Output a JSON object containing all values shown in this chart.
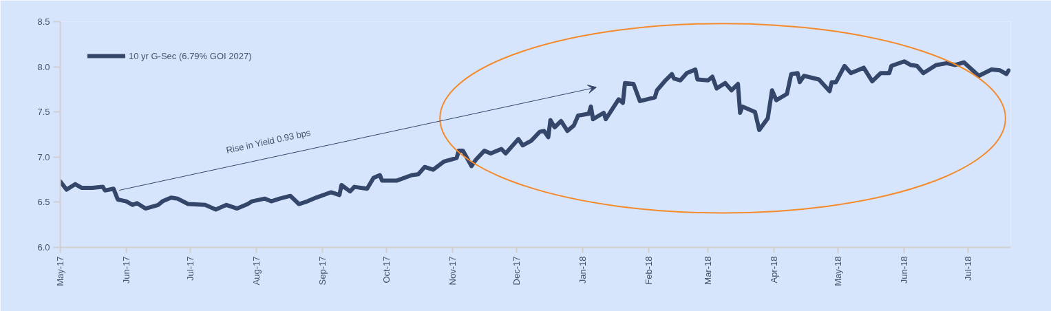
{
  "chart_data": {
    "type": "line",
    "x": [
      "2017-05-01",
      "2017-05-04",
      "2017-05-08",
      "2017-05-11",
      "2017-05-16",
      "2017-05-21",
      "2017-05-22",
      "2017-05-26",
      "2017-05-28",
      "2017-06-01",
      "2017-06-04",
      "2017-06-06",
      "2017-06-10",
      "2017-06-16",
      "2017-06-18",
      "2017-06-22",
      "2017-06-25",
      "2017-06-30",
      "2017-07-08",
      "2017-07-13",
      "2017-07-18",
      "2017-07-23",
      "2017-07-28",
      "2017-07-30",
      "2017-08-05",
      "2017-08-08",
      "2017-08-12",
      "2017-08-17",
      "2017-08-21",
      "2017-08-25",
      "2017-08-29",
      "2017-09-05",
      "2017-09-09",
      "2017-09-10",
      "2017-09-14",
      "2017-09-16",
      "2017-09-22",
      "2017-09-25",
      "2017-09-28",
      "2017-09-29",
      "2017-10-06",
      "2017-10-13",
      "2017-10-16",
      "2017-10-19",
      "2017-10-23",
      "2017-10-28",
      "2017-11-03",
      "2017-11-04",
      "2017-11-06",
      "2017-11-10",
      "2017-11-12",
      "2017-11-16",
      "2017-11-19",
      "2017-11-24",
      "2017-11-26",
      "2017-12-02",
      "2017-12-04",
      "2017-12-08",
      "2017-12-12",
      "2017-12-14",
      "2017-12-16",
      "2017-12-17",
      "2017-12-19",
      "2017-12-22",
      "2017-12-25",
      "2017-12-28",
      "2017-12-30",
      "2018-01-04",
      "2018-01-05",
      "2018-01-06",
      "2018-01-11",
      "2018-01-12",
      "2018-01-18",
      "2018-01-20",
      "2018-01-21",
      "2018-01-25",
      "2018-01-28",
      "2018-02-04",
      "2018-02-05",
      "2018-02-09",
      "2018-02-12",
      "2018-02-13",
      "2018-02-16",
      "2018-02-19",
      "2018-02-23",
      "2018-02-24",
      "2018-03-01",
      "2018-03-03",
      "2018-03-05",
      "2018-03-09",
      "2018-03-12",
      "2018-03-15",
      "2018-03-16",
      "2018-03-17",
      "2018-03-23",
      "2018-03-25",
      "2018-03-29",
      "2018-03-31",
      "2018-04-02",
      "2018-04-07",
      "2018-04-09",
      "2018-04-12",
      "2018-04-13",
      "2018-04-15",
      "2018-04-22",
      "2018-04-27",
      "2018-04-28",
      "2018-04-30",
      "2018-05-04",
      "2018-05-07",
      "2018-05-13",
      "2018-05-17",
      "2018-05-21",
      "2018-05-25",
      "2018-05-26",
      "2018-06-01",
      "2018-06-04",
      "2018-06-07",
      "2018-06-10",
      "2018-06-16",
      "2018-06-21",
      "2018-06-25",
      "2018-06-29",
      "2018-07-06",
      "2018-07-12",
      "2018-07-16",
      "2018-07-19",
      "2018-07-20"
    ],
    "series": [
      {
        "name": "10 yr G-Sec (6.79% GOI 2027)",
        "color": "#34466a",
        "values": [
          6.73,
          6.64,
          6.7,
          6.66,
          6.66,
          6.67,
          6.63,
          6.65,
          6.53,
          6.51,
          6.47,
          6.49,
          6.43,
          6.47,
          6.51,
          6.55,
          6.54,
          6.48,
          6.47,
          6.42,
          6.47,
          6.43,
          6.48,
          6.51,
          6.54,
          6.51,
          6.54,
          6.57,
          6.48,
          6.51,
          6.55,
          6.61,
          6.58,
          6.69,
          6.62,
          6.67,
          6.65,
          6.77,
          6.8,
          6.74,
          6.74,
          6.8,
          6.81,
          6.89,
          6.86,
          6.95,
          6.99,
          7.07,
          7.07,
          6.9,
          6.97,
          7.07,
          7.04,
          7.09,
          7.04,
          7.2,
          7.13,
          7.18,
          7.28,
          7.29,
          7.22,
          7.41,
          7.33,
          7.4,
          7.29,
          7.35,
          7.46,
          7.48,
          7.56,
          7.42,
          7.49,
          7.42,
          7.64,
          7.6,
          7.82,
          7.81,
          7.62,
          7.66,
          7.74,
          7.85,
          7.92,
          7.87,
          7.85,
          7.93,
          7.97,
          7.86,
          7.85,
          7.89,
          7.76,
          7.82,
          7.74,
          7.81,
          7.49,
          7.56,
          7.5,
          7.3,
          7.43,
          7.74,
          7.63,
          7.7,
          7.92,
          7.93,
          7.83,
          7.9,
          7.86,
          7.73,
          7.83,
          7.83,
          8.01,
          7.93,
          7.99,
          7.84,
          7.93,
          7.93,
          8.01,
          8.06,
          8.02,
          8.01,
          7.93,
          8.02,
          8.04,
          8.02,
          8.05,
          7.9,
          7.97,
          7.96,
          7.92,
          7.96
        ]
      }
    ],
    "xlim": [
      "2017-05-01",
      "2018-07-21"
    ],
    "xticks": [
      {
        "value": "2017-05-01",
        "label": "May-17"
      },
      {
        "value": "2017-06-01",
        "label": "Jun-17"
      },
      {
        "value": "2017-07-01",
        "label": "Jul-17"
      },
      {
        "value": "2017-08-01",
        "label": "Aug-17"
      },
      {
        "value": "2017-09-01",
        "label": "Sep-17"
      },
      {
        "value": "2017-10-01",
        "label": "Oct-17"
      },
      {
        "value": "2017-11-01",
        "label": "Nov-17"
      },
      {
        "value": "2017-12-01",
        "label": "Dec-17"
      },
      {
        "value": "2018-01-01",
        "label": "Jan-18"
      },
      {
        "value": "2018-02-01",
        "label": "Feb-18"
      },
      {
        "value": "2018-03-01",
        "label": "Mar-18"
      },
      {
        "value": "2018-04-01",
        "label": "Apr-18"
      },
      {
        "value": "2018-05-01",
        "label": "May-18"
      },
      {
        "value": "2018-06-01",
        "label": "Jun-18"
      },
      {
        "value": "2018-07-01",
        "label": "Jul-18"
      }
    ],
    "ylim": [
      6.0,
      8.5
    ],
    "yticks": [
      {
        "value": 6.0,
        "label": "6.0"
      },
      {
        "value": 6.5,
        "label": "6.5"
      },
      {
        "value": 7.0,
        "label": "7.0"
      },
      {
        "value": 7.5,
        "label": "7.5"
      },
      {
        "value": 8.0,
        "label": "8.0"
      },
      {
        "value": 8.5,
        "label": "8.5"
      }
    ],
    "annotations": [
      "Rise in Yield 0.93 bps"
    ],
    "grid": false,
    "legend": "top left",
    "marker": "none",
    "line_style": "solid"
  }
}
